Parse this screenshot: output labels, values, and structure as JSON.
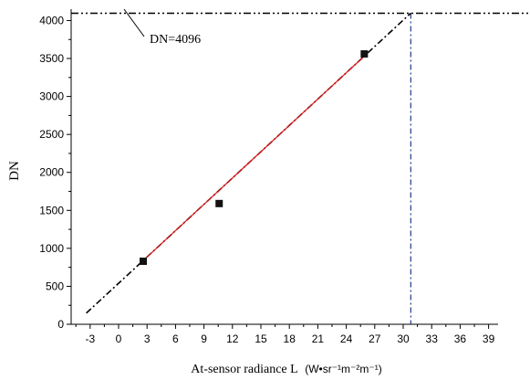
{
  "chart_data": {
    "type": "scatter",
    "xlabel_prefix": "At-sensor radiance L",
    "xlabel_units": "(W•sr⁻¹m⁻²m⁻¹)",
    "ylabel": "DN",
    "annotation": "DN=4096",
    "xlim": [
      -5,
      40
    ],
    "ylim": [
      0,
      4150
    ],
    "x_ticks": [
      -3,
      0,
      3,
      6,
      9,
      12,
      15,
      18,
      21,
      24,
      27,
      30,
      33,
      36,
      39
    ],
    "y_ticks": [
      0,
      500,
      1000,
      1500,
      2000,
      2500,
      3000,
      3500,
      4000
    ],
    "grid": false,
    "points": [
      {
        "x": 2.6,
        "y": 830
      },
      {
        "x": 10.6,
        "y": 1590
      },
      {
        "x": 25.9,
        "y": 3560
      }
    ],
    "fit_line": {
      "x_start": 2.6,
      "x_end": 25.9,
      "slope": 115.5,
      "intercept": 540,
      "color": "#e31a1c"
    },
    "extrapolation": {
      "x_start": -3.4,
      "x_end": 30.8,
      "color": "#000000"
    },
    "saturation_level": 4096,
    "saturation_x": 30.8,
    "saturation_color": "#1f3a8a"
  }
}
